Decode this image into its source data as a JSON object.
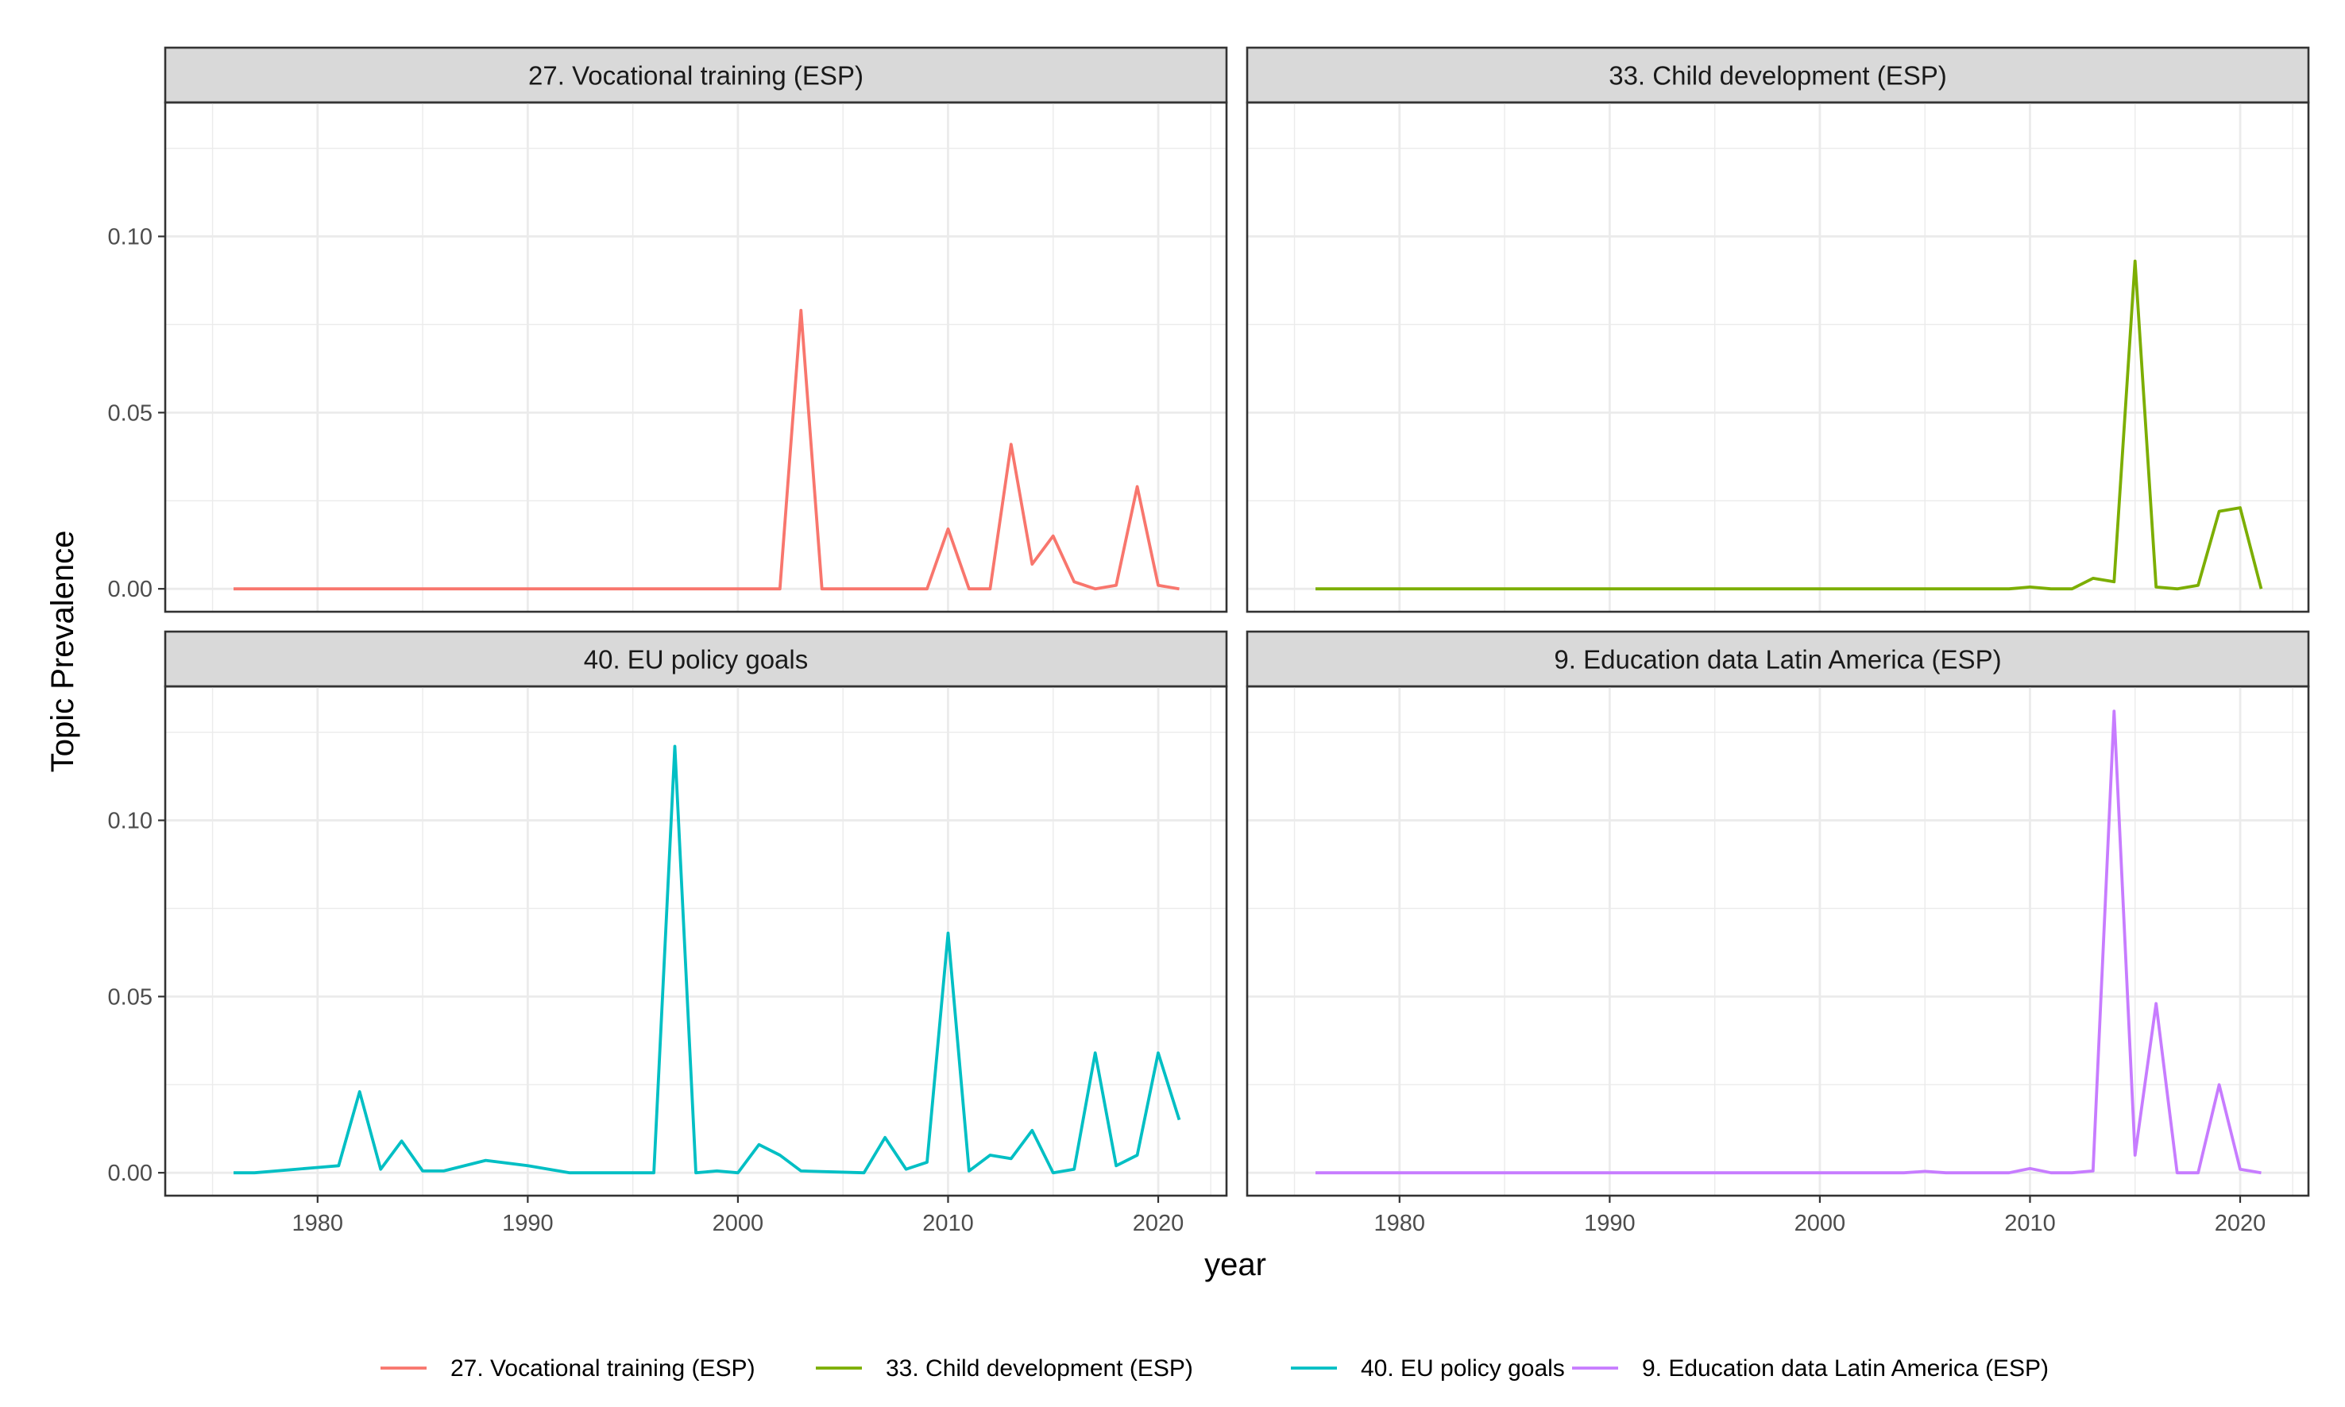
{
  "chart_data": {
    "type": "line",
    "xlabel": "year",
    "ylabel": "Topic Prevalence",
    "xlim": [
      1972.75,
      2023.25
    ],
    "ylim": [
      -0.0065,
      0.138
    ],
    "x_ticks": [
      1980,
      1990,
      2000,
      2010,
      2020
    ],
    "y_ticks": [
      0.0,
      0.05,
      0.1
    ],
    "y_tick_labels": [
      "0.00",
      "0.05",
      "0.10"
    ],
    "grid": true,
    "legend_position": "bottom",
    "panels": [
      {
        "title": "27. Vocational training (ESP)",
        "color": "#F8766D",
        "x": [
          1976,
          2002,
          2003,
          2004,
          2009,
          2010,
          2011,
          2012,
          2013,
          2014,
          2015,
          2016,
          2017,
          2018,
          2019,
          2020,
          2021
        ],
        "y": [
          0.0,
          0.0,
          0.079,
          0.0,
          0.0,
          0.017,
          0.0,
          0.0,
          0.041,
          0.007,
          0.015,
          0.002,
          0.0,
          0.001,
          0.029,
          0.001,
          0.0
        ]
      },
      {
        "title": "33. Child development (ESP)",
        "color": "#7CAE00",
        "x": [
          1976,
          2009,
          2010,
          2011,
          2012,
          2013,
          2014,
          2015,
          2016,
          2017,
          2018,
          2019,
          2020,
          2021
        ],
        "y": [
          0.0,
          0.0,
          0.0005,
          0.0,
          0.0,
          0.003,
          0.002,
          0.093,
          0.0005,
          0.0,
          0.001,
          0.022,
          0.023,
          0.0
        ]
      },
      {
        "title": "40. EU policy goals",
        "color": "#00BFC4",
        "x": [
          1976,
          1977,
          1980,
          1981,
          1982,
          1983,
          1984,
          1985,
          1986,
          1988,
          1990,
          1992,
          1996,
          1997,
          1998,
          1999,
          2000,
          2001,
          2002,
          2003,
          2006,
          2007,
          2008,
          2009,
          2010,
          2011,
          2012,
          2013,
          2014,
          2015,
          2016,
          2017,
          2018,
          2019,
          2020,
          2021
        ],
        "y": [
          0.0,
          0.0,
          0.0015,
          0.002,
          0.023,
          0.001,
          0.009,
          0.0005,
          0.0005,
          0.0035,
          0.002,
          0.0,
          0.0,
          0.121,
          0.0,
          0.0005,
          0.0,
          0.008,
          0.005,
          0.0005,
          0.0,
          0.01,
          0.001,
          0.003,
          0.068,
          0.0005,
          0.005,
          0.004,
          0.012,
          0.0,
          0.001,
          0.034,
          0.002,
          0.005,
          0.034,
          0.015
        ]
      },
      {
        "title": "9. Education data Latin America (ESP)",
        "color": "#C77CFF",
        "x": [
          1976,
          2004,
          2005,
          2006,
          2009,
          2010,
          2011,
          2012,
          2013,
          2014,
          2015,
          2016,
          2017,
          2018,
          2019,
          2020,
          2021
        ],
        "y": [
          0.0,
          0.0,
          0.0004,
          0.0,
          0.0,
          0.0012,
          0.0,
          0.0,
          0.0005,
          0.131,
          0.005,
          0.048,
          0.0,
          0.0,
          0.025,
          0.001,
          0.0
        ]
      }
    ],
    "legend": [
      {
        "label": "27. Vocational training (ESP)",
        "color": "#F8766D"
      },
      {
        "label": "33. Child development (ESP)",
        "color": "#7CAE00"
      },
      {
        "label": "40. EU policy goals",
        "color": "#00BFC4"
      },
      {
        "label": "9. Education data Latin America (ESP)",
        "color": "#C77CFF"
      }
    ]
  }
}
